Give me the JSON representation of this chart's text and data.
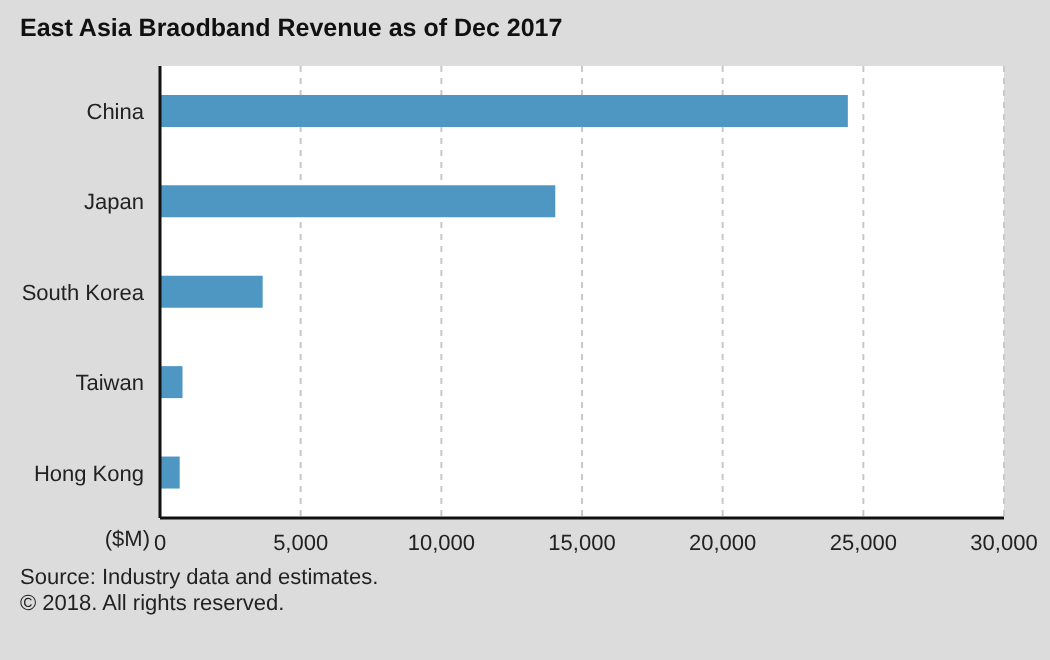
{
  "chart_data": {
    "type": "bar",
    "orientation": "horizontal",
    "title": "East Asia Braodband Revenue as of Dec 2017",
    "categories": [
      "China",
      "Japan",
      "South Korea",
      "Taiwan",
      "Hong Kong"
    ],
    "values": [
      24450,
      14050,
      3650,
      800,
      700
    ],
    "color": "#4f97c3",
    "xlabel": "($M)",
    "xlim": [
      0,
      30000
    ],
    "xticks": [
      0,
      {
        "value": 5000,
        "label": "5,000"
      },
      {
        "value": 10000,
        "label": "10,000"
      },
      {
        "value": 15000,
        "label": "15,000"
      },
      {
        "value": 20000,
        "label": "20,000"
      },
      {
        "value": 25000,
        "label": "25,000"
      },
      {
        "value": 30000,
        "label": "30,000"
      }
    ],
    "grid": "x",
    "annotations": [
      "Source: Industry data and estimates.",
      "© 2018. All rights reserved."
    ]
  }
}
